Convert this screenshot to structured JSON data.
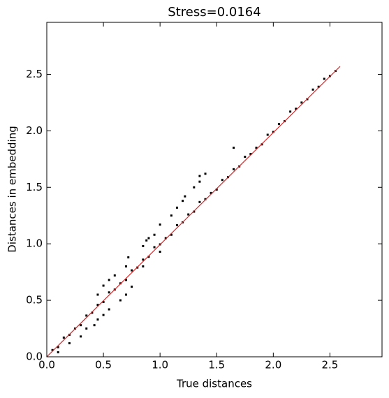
{
  "chart_data": {
    "type": "scatter",
    "title": "Stress=0.0164",
    "x_label": "True distances",
    "y_label": "Distances in embedding",
    "color": "#000000",
    "x": [
      0.05,
      0.1,
      0.15,
      0.2,
      0.25,
      0.3,
      0.35,
      0.4,
      0.45,
      0.5,
      0.55,
      0.6,
      0.65,
      0.7,
      0.75,
      0.8,
      0.85,
      0.9,
      0.95,
      1.0,
      1.05,
      1.1,
      1.15,
      1.2,
      1.25,
      1.3,
      1.35,
      1.4,
      1.45,
      1.5,
      1.55,
      1.6,
      1.65,
      1.7,
      1.75,
      1.8,
      1.85,
      1.9,
      1.95,
      2.0,
      2.05,
      2.1,
      2.15,
      2.2,
      2.25,
      2.3,
      2.35,
      2.4,
      2.45,
      2.5,
      2.55,
      0.45,
      0.5,
      0.55,
      0.7,
      0.72,
      0.85,
      0.88,
      0.9,
      1.0,
      1.1,
      1.15,
      1.2,
      1.22,
      1.3,
      1.35,
      1.4,
      1.65,
      1.35,
      0.95,
      0.6,
      0.3,
      0.35,
      0.42,
      0.45,
      0.5,
      0.55,
      0.65,
      0.7,
      0.75,
      0.2,
      0.1,
      0.85,
      1.0
    ],
    "y": [
      0.06,
      0.085,
      0.17,
      0.195,
      0.25,
      0.28,
      0.365,
      0.39,
      0.46,
      0.485,
      0.57,
      0.595,
      0.65,
      0.68,
      0.765,
      0.79,
      0.86,
      0.885,
      0.97,
      0.995,
      1.05,
      1.08,
      1.165,
      1.19,
      1.26,
      1.285,
      1.37,
      1.395,
      1.45,
      1.48,
      1.565,
      1.59,
      1.66,
      1.685,
      1.77,
      1.795,
      1.85,
      1.88,
      1.965,
      1.99,
      2.06,
      2.085,
      2.17,
      2.195,
      2.25,
      2.28,
      2.365,
      2.39,
      2.46,
      2.485,
      2.53,
      0.55,
      0.63,
      0.68,
      0.8,
      0.88,
      0.98,
      1.03,
      1.05,
      1.17,
      1.25,
      1.32,
      1.38,
      1.42,
      1.5,
      1.55,
      1.62,
      1.85,
      1.6,
      1.08,
      0.72,
      0.18,
      0.25,
      0.28,
      0.33,
      0.37,
      0.42,
      0.5,
      0.55,
      0.62,
      0.12,
      0.04,
      0.8,
      0.93
    ],
    "reference_line": {
      "x": [
        0,
        2.59
      ],
      "y": [
        0,
        2.57
      ],
      "color": "#d62728"
    },
    "xlim": [
      0,
      2.96
    ],
    "ylim": [
      0,
      2.96
    ],
    "xticks": [
      {
        "value": 0,
        "label": "0.0"
      },
      0.5,
      {
        "value": 1,
        "label": "1.0"
      },
      1.5,
      {
        "value": 2,
        "label": "2.0"
      },
      2.5
    ],
    "yticks": [
      {
        "value": 0,
        "label": "0.0"
      },
      0.5,
      {
        "value": 1,
        "label": "1.0"
      },
      1.5,
      {
        "value": 2,
        "label": "2.0"
      },
      2.5
    ]
  }
}
